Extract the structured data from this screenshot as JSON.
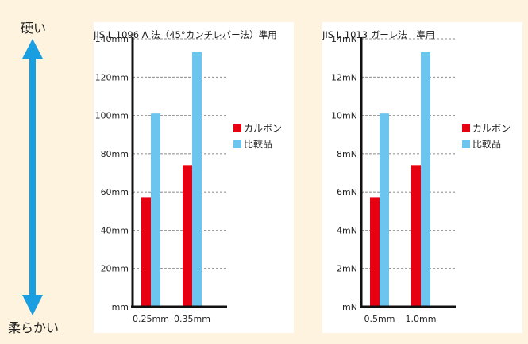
{
  "scale": {
    "top_label": "硬い",
    "bottom_label": "柔らかい",
    "arrow_color": "#1a9ee2"
  },
  "colors": {
    "carbon": "#e60012",
    "comparison": "#6cc5ee",
    "gridline": "#666666",
    "background": "#fdf3df"
  },
  "chart_data": [
    {
      "type": "bar",
      "title": "JIS L 1096 A 法（45°カンチレバー法）準用",
      "categories": [
        "0.25mm",
        "0.35mm"
      ],
      "series": [
        {
          "name": "カルボン",
          "values": [
            57,
            74
          ]
        },
        {
          "name": "比較品",
          "values": [
            101,
            133
          ]
        }
      ],
      "yticks": [
        "mm",
        "20mm",
        "40mm",
        "60mm",
        "80mm",
        "100mm",
        "120mm",
        "140mm"
      ],
      "ylim": [
        0,
        140
      ],
      "xlabel": "",
      "ylabel": "",
      "grid": true,
      "legend_position": "right"
    },
    {
      "type": "bar",
      "title": "JIS L 1013 ガーレ法　準用",
      "categories": [
        "0.5mm",
        "1.0mm"
      ],
      "series": [
        {
          "name": "カルボン",
          "values": [
            5.7,
            7.4
          ]
        },
        {
          "name": "比較品",
          "values": [
            10.1,
            13.3
          ]
        }
      ],
      "yticks": [
        "mN",
        "2mN",
        "4mN",
        "6mN",
        "8mN",
        "10mN",
        "12mN",
        "14mN"
      ],
      "ylim": [
        0,
        14
      ],
      "xlabel": "",
      "ylabel": "",
      "grid": true,
      "legend_position": "right"
    }
  ]
}
